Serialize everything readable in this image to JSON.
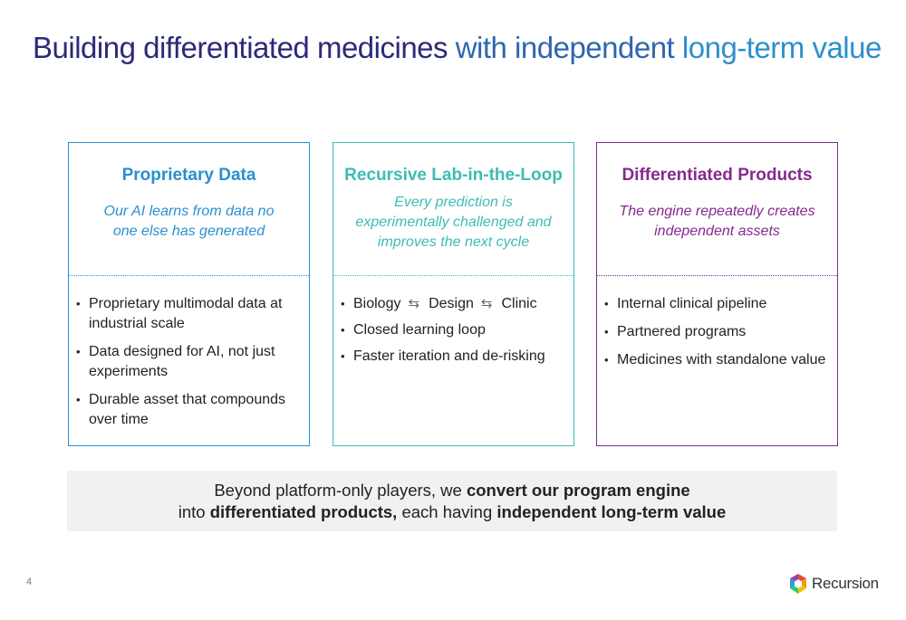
{
  "title": {
    "part1": "Building differentiated medicines",
    "part2": " with independent ",
    "part3": "long-term value"
  },
  "cards": [
    {
      "heading": "Proprietary Data",
      "subtitle": "Our AI learns from data no one else has generated",
      "bullets": [
        "Proprietary multimodal data at industrial scale",
        "Data designed for AI, not just experiments",
        "Durable asset that compounds over time"
      ],
      "color": "#2a8fcf"
    },
    {
      "heading": "Recursive Lab-in-the-Loop",
      "subtitle": "Every prediction is experimentally challenged and improves the next cycle",
      "loop": [
        "Biology",
        "Design",
        "Clinic"
      ],
      "bullets": [
        "Closed learning loop",
        "Faster iteration and de-risking"
      ],
      "color": "#3dbcb4"
    },
    {
      "heading": "Differentiated Products",
      "subtitle": "The engine repeatedly creates independent assets",
      "bullets": [
        "Internal clinical pipeline",
        "Partnered programs",
        "Medicines with standalone value"
      ],
      "color": "#862a8e"
    }
  ],
  "banner": {
    "line1_a": "Beyond platform-only players, we ",
    "line1_b": "convert our program engine",
    "line2_a": "into ",
    "line2_b": "differentiated products,",
    "line2_c": " each having ",
    "line2_d": "independent long-term value"
  },
  "page_number": "4",
  "logo": {
    "wordmark": "Recursion",
    "mark": "Recursion hexagon logo"
  },
  "icons": {
    "loop_arrow": "left-right-cycle-arrows-icon"
  }
}
